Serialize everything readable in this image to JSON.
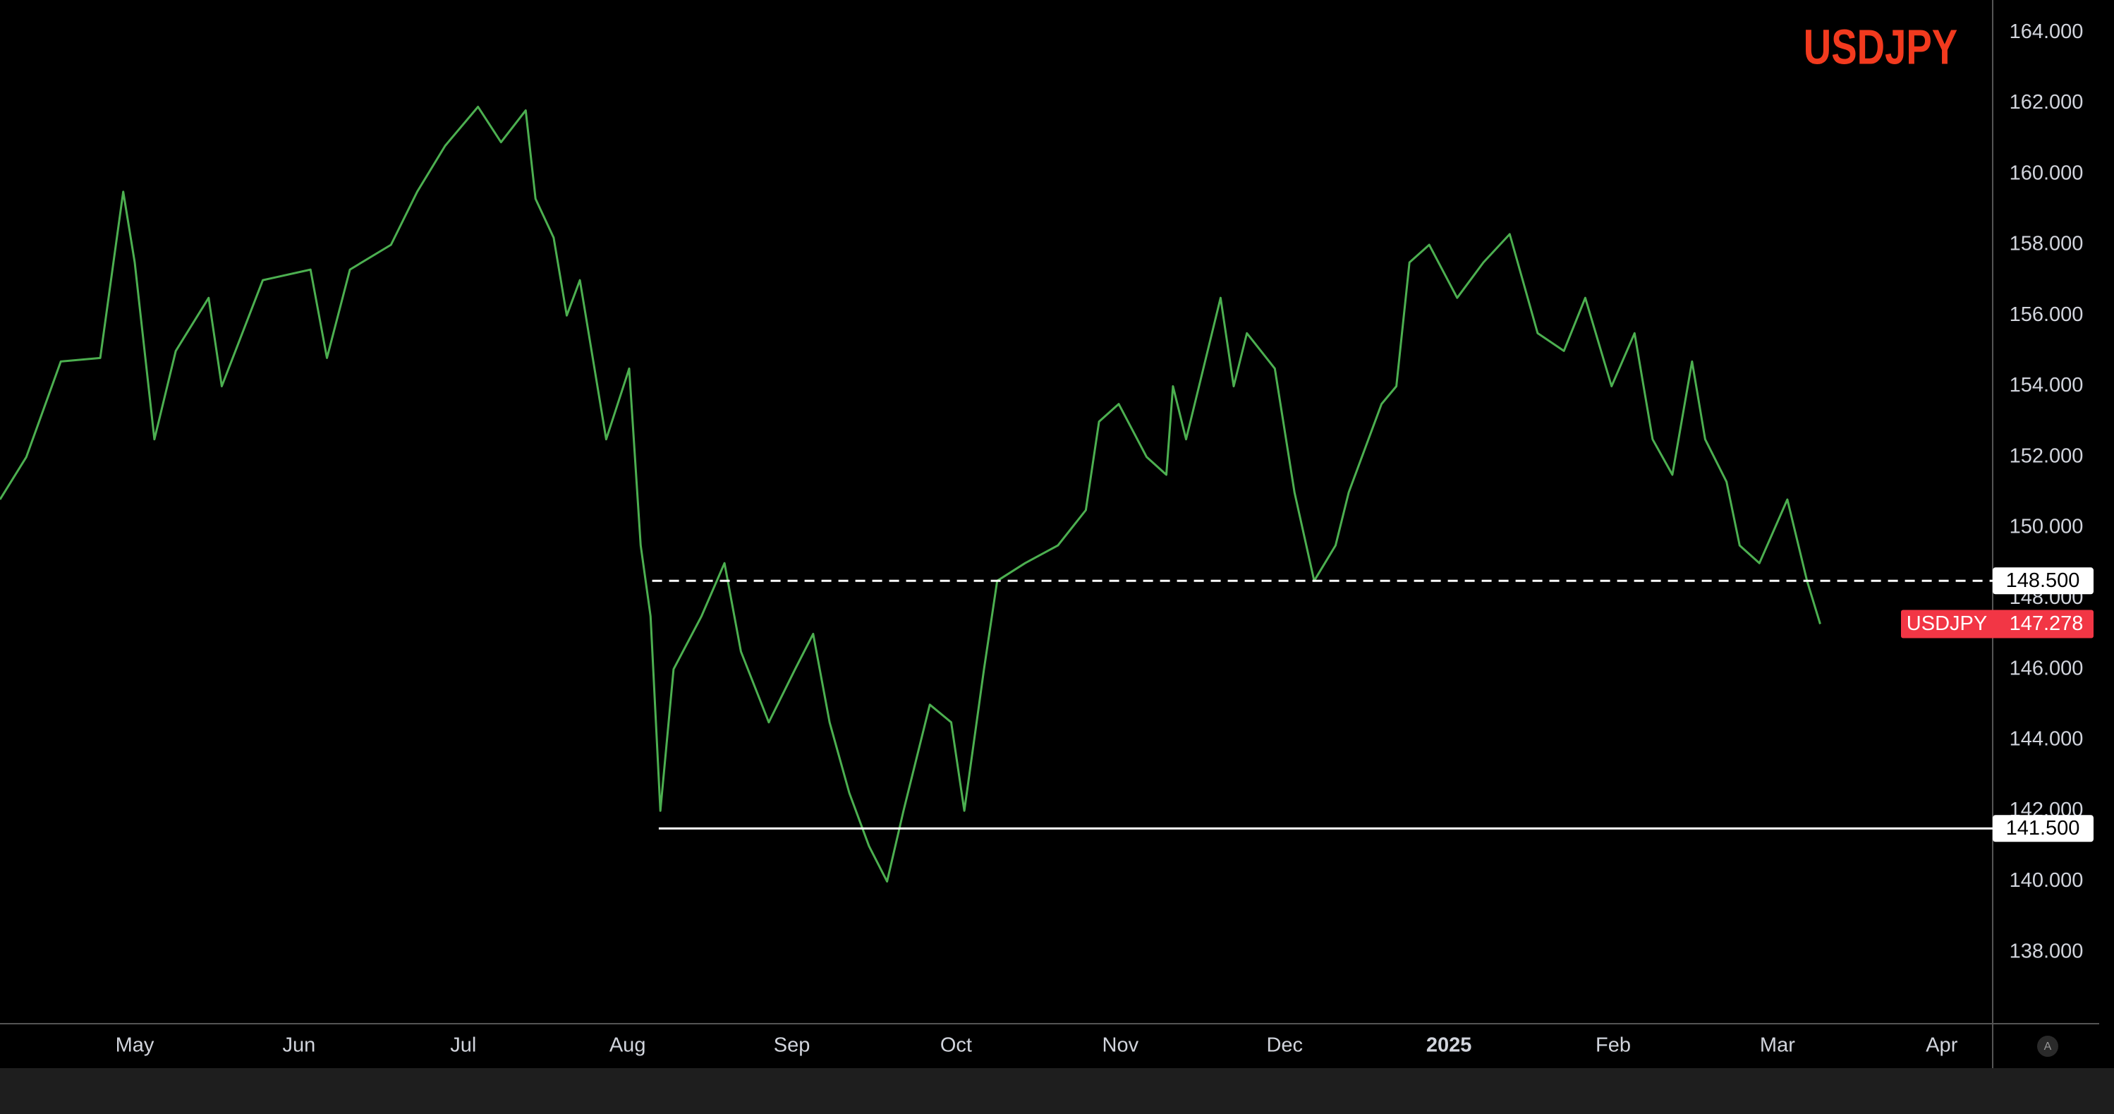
{
  "chart_data": {
    "type": "line",
    "title": "USDJPY",
    "title_color": "#f23a1e",
    "series": [
      {
        "name": "USDJPY",
        "color": "#4caf50",
        "x": [
          -0.82,
          -0.66,
          -0.45,
          -0.21,
          -0.07,
          0,
          0.12,
          0.25,
          0.45,
          0.53,
          0.78,
          1.07,
          1.17,
          1.31,
          1.56,
          1.72,
          1.89,
          2.09,
          2.23,
          2.38,
          2.44,
          2.55,
          2.63,
          2.71,
          2.87,
          3.01,
          3.08,
          3.14,
          3.2,
          3.28,
          3.45,
          3.59,
          3.69,
          3.86,
          4.02,
          4.13,
          4.23,
          4.35,
          4.47,
          4.58,
          4.68,
          4.84,
          4.97,
          5.05,
          5.17,
          5.25,
          5.42,
          5.62,
          5.79,
          5.87,
          5.99,
          6.16,
          6.28,
          6.32,
          6.4,
          6.61,
          6.69,
          6.77,
          6.94,
          7.06,
          7.18,
          7.31,
          7.39,
          7.59,
          7.68,
          7.76,
          7.88,
          8.05,
          8.21,
          8.37,
          8.54,
          8.7,
          8.83,
          8.99,
          9.13,
          9.24,
          9.36,
          9.48,
          9.56,
          9.69,
          9.77,
          9.89,
          10.06,
          10.18,
          10.26
        ],
        "values": [
          150.8,
          152.0,
          154.7,
          154.8,
          159.5,
          157.5,
          152.5,
          155.0,
          156.5,
          154.0,
          157.0,
          157.3,
          154.8,
          157.3,
          158.0,
          159.5,
          160.8,
          161.9,
          160.9,
          161.8,
          159.3,
          158.2,
          156.0,
          157.0,
          152.5,
          154.5,
          149.5,
          147.5,
          142.0,
          146.0,
          147.5,
          149.0,
          146.5,
          144.5,
          146.0,
          147.0,
          144.5,
          142.5,
          141.0,
          140.0,
          142.0,
          145.0,
          144.5,
          142.0,
          146.0,
          148.5,
          149.0,
          149.5,
          150.5,
          153.0,
          153.5,
          152.0,
          151.5,
          154.0,
          152.5,
          156.5,
          154.0,
          155.5,
          154.5,
          151.0,
          148.5,
          149.5,
          151.0,
          153.5,
          154.0,
          157.5,
          158.0,
          156.5,
          157.5,
          158.3,
          155.5,
          155.0,
          156.5,
          154.0,
          155.5,
          152.5,
          151.5,
          154.7,
          152.5,
          151.3,
          149.5,
          149.0,
          150.8,
          148.5,
          147.278
        ]
      }
    ],
    "price_tag_color": "#f23645",
    "xlim": [
      -0.82,
      11.31
    ],
    "xticks": [
      {
        "value": 0,
        "label": "May"
      },
      {
        "value": 1,
        "label": "Jun"
      },
      {
        "value": 2,
        "label": "Jul"
      },
      {
        "value": 3,
        "label": "Aug"
      },
      {
        "value": 4,
        "label": "Sep"
      },
      {
        "value": 5,
        "label": "Oct"
      },
      {
        "value": 6,
        "label": "Nov"
      },
      {
        "value": 7,
        "label": "Dec"
      },
      {
        "value": 8,
        "label": "2025"
      },
      {
        "value": 9,
        "label": "Feb"
      },
      {
        "value": 10,
        "label": "Mar"
      },
      {
        "value": 11,
        "label": "Apr"
      }
    ],
    "bold_xtick_index": 8,
    "ylim": [
      135.98,
      164.92
    ],
    "yticks": [
      {
        "value": 138,
        "label": "138.000"
      },
      {
        "value": 140,
        "label": "140.000"
      },
      {
        "value": 142,
        "label": "142.000"
      },
      {
        "value": 144,
        "label": "144.000"
      },
      {
        "value": 146,
        "label": "146.000"
      },
      {
        "value": 148,
        "label": "148.000"
      },
      {
        "value": 150,
        "label": "150.000"
      },
      {
        "value": 152,
        "label": "152.000"
      },
      {
        "value": 154,
        "label": "154.000"
      },
      {
        "value": 156,
        "label": "156.000"
      },
      {
        "value": 158,
        "label": "158.000"
      },
      {
        "value": 160,
        "label": "160.000"
      },
      {
        "value": 162,
        "label": "162.000"
      },
      {
        "value": 164,
        "label": "164.000"
      }
    ],
    "levels": [
      {
        "value": 148.5,
        "label": "148.500",
        "style": "dashed",
        "start_x": 3.15
      },
      {
        "value": 141.5,
        "label": "141.500",
        "style": "solid",
        "start_x": 3.19
      }
    ],
    "grid": false,
    "scale_mode_label": "A"
  }
}
